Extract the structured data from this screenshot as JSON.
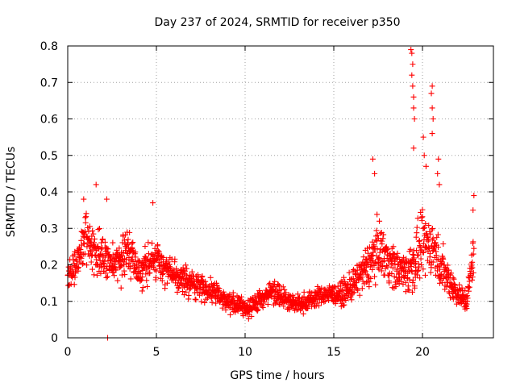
{
  "chart_data": {
    "type": "scatter",
    "title": "Day 237 of 2024, SRMTID for receiver p350",
    "xlabel": "GPS time / hours",
    "ylabel": "SRMTID / TECUs",
    "xlim": [
      0,
      24
    ],
    "ylim": [
      0,
      0.8
    ],
    "xticks": [
      0,
      5,
      10,
      15,
      20
    ],
    "xtick_labels": [
      "0",
      "5",
      "10",
      "15",
      "20"
    ],
    "yticks": [
      0,
      0.1,
      0.2,
      0.3,
      0.4,
      0.5,
      0.6,
      0.7,
      0.8
    ],
    "ytick_labels": [
      "0",
      "0.1",
      "0.2",
      "0.3",
      "0.4",
      "0.5",
      "0.6",
      "0.7",
      "0.8"
    ],
    "grid": true,
    "marker": "+",
    "color": "#ff0000",
    "x_range_data": [
      0,
      22.9
    ],
    "profile": {
      "x": [
        0.0,
        0.5,
        1.0,
        1.5,
        2.0,
        2.5,
        3.0,
        3.5,
        4.0,
        4.5,
        5.0,
        5.5,
        6.0,
        6.5,
        7.0,
        7.5,
        8.0,
        8.5,
        9.0,
        9.5,
        10.0,
        10.5,
        11.0,
        11.5,
        12.0,
        12.5,
        13.0,
        13.5,
        14.0,
        14.5,
        15.0,
        15.5,
        16.0,
        16.5,
        17.0,
        17.5,
        18.0,
        18.5,
        19.0,
        19.5,
        20.0,
        20.5,
        21.0,
        21.5,
        22.0,
        22.5,
        22.9
      ],
      "mean": [
        0.17,
        0.2,
        0.27,
        0.24,
        0.22,
        0.2,
        0.22,
        0.24,
        0.18,
        0.2,
        0.22,
        0.19,
        0.17,
        0.16,
        0.15,
        0.14,
        0.13,
        0.12,
        0.1,
        0.09,
        0.08,
        0.09,
        0.11,
        0.13,
        0.12,
        0.1,
        0.09,
        0.1,
        0.11,
        0.12,
        0.12,
        0.12,
        0.14,
        0.17,
        0.2,
        0.25,
        0.22,
        0.19,
        0.18,
        0.2,
        0.25,
        0.26,
        0.2,
        0.16,
        0.12,
        0.1,
        0.24
      ],
      "spread": [
        0.07,
        0.08,
        0.1,
        0.1,
        0.09,
        0.09,
        0.09,
        0.08,
        0.07,
        0.08,
        0.08,
        0.07,
        0.06,
        0.06,
        0.06,
        0.05,
        0.05,
        0.05,
        0.04,
        0.04,
        0.04,
        0.04,
        0.05,
        0.05,
        0.05,
        0.04,
        0.04,
        0.04,
        0.04,
        0.04,
        0.04,
        0.05,
        0.06,
        0.08,
        0.1,
        0.11,
        0.1,
        0.09,
        0.09,
        0.12,
        0.13,
        0.12,
        0.1,
        0.08,
        0.05,
        0.05,
        0.1
      ]
    },
    "peaks": [
      {
        "x": 0.9,
        "y": 0.38
      },
      {
        "x": 1.6,
        "y": 0.42
      },
      {
        "x": 2.2,
        "y": 0.38
      },
      {
        "x": 2.25,
        "y": 0.0
      },
      {
        "x": 4.8,
        "y": 0.37
      },
      {
        "x": 17.2,
        "y": 0.49
      },
      {
        "x": 17.3,
        "y": 0.45
      },
      {
        "x": 19.35,
        "y": 0.79
      },
      {
        "x": 19.4,
        "y": 0.78
      },
      {
        "x": 19.45,
        "y": 0.75
      },
      {
        "x": 19.4,
        "y": 0.72
      },
      {
        "x": 19.45,
        "y": 0.69
      },
      {
        "x": 19.5,
        "y": 0.66
      },
      {
        "x": 19.5,
        "y": 0.63
      },
      {
        "x": 19.55,
        "y": 0.6
      },
      {
        "x": 19.5,
        "y": 0.52
      },
      {
        "x": 20.05,
        "y": 0.55
      },
      {
        "x": 20.1,
        "y": 0.5
      },
      {
        "x": 20.2,
        "y": 0.47
      },
      {
        "x": 20.55,
        "y": 0.69
      },
      {
        "x": 20.5,
        "y": 0.67
      },
      {
        "x": 20.55,
        "y": 0.63
      },
      {
        "x": 20.6,
        "y": 0.6
      },
      {
        "x": 20.55,
        "y": 0.56
      },
      {
        "x": 20.9,
        "y": 0.49
      },
      {
        "x": 20.85,
        "y": 0.45
      },
      {
        "x": 20.95,
        "y": 0.42
      },
      {
        "x": 22.9,
        "y": 0.39
      },
      {
        "x": 22.85,
        "y": 0.35
      }
    ],
    "n_points": 1700
  }
}
